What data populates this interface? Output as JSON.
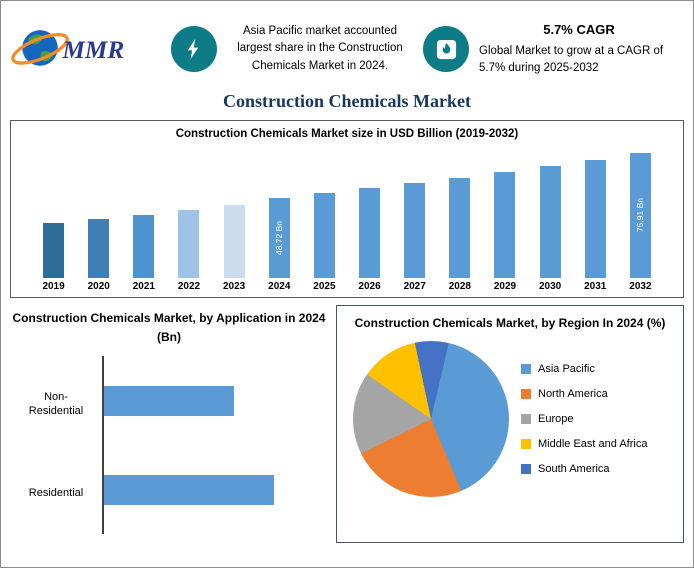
{
  "banner": {
    "logo": {
      "text": "MMR"
    },
    "highlight1": {
      "icon": "lightning-icon",
      "text": "Asia Pacific market accounted largest share in the Construction Chemicals Market in 2024."
    },
    "highlight2": {
      "icon": "flame-icon",
      "heading": "5.7% CAGR",
      "text": "Global Market to grow at a CAGR of 5.7% during 2025-2032"
    }
  },
  "page_title": "Construction Chemicals Market",
  "colors": {
    "accent_teal": "#0E7C86",
    "title_navy": "#17375E",
    "bar_blue": "#5B9BD5"
  },
  "chart_data": [
    {
      "type": "bar",
      "title": "Construction Chemicals Market size in USD Billion (2019-2032)",
      "categories": [
        "2019",
        "2020",
        "2021",
        "2022",
        "2023",
        "2024",
        "2025",
        "2026",
        "2027",
        "2028",
        "2029",
        "2030",
        "2031",
        "2032"
      ],
      "values": [
        33.6,
        35.8,
        38.4,
        41.4,
        44.0,
        48.72,
        51.5,
        54.4,
        57.5,
        60.8,
        64.3,
        67.9,
        71.8,
        75.91
      ],
      "bar_labels": [
        "",
        "",
        "",
        "",
        "",
        "48.72 Bn",
        "",
        "",
        "",
        "",
        "",
        "",
        "",
        "75.91 Bn"
      ],
      "bar_colors": [
        "#2E6E96",
        "#3F7FB6",
        "#4D94CE",
        "#9DC3E6",
        "#C9DCF0",
        "#5B9BD5",
        "#5B9BD5",
        "#5B9BD5",
        "#5B9BD5",
        "#5B9BD5",
        "#5B9BD5",
        "#5B9BD5",
        "#5B9BD5",
        "#5B9BD5"
      ],
      "ylabel": "USD Billion",
      "ylim": [
        0,
        80
      ],
      "grid": false,
      "legend": "none"
    },
    {
      "type": "bar",
      "orientation": "horizontal",
      "title": "Construction Chemicals Market, by Application in 2024 (Bn)",
      "categories": [
        "Non-Residential",
        "Residential"
      ],
      "values": [
        21.0,
        27.7
      ],
      "xlim": [
        0,
        34
      ],
      "bar_color": "#5B9BD5",
      "grid": false,
      "legend": "none"
    },
    {
      "type": "pie",
      "title": "Construction Chemicals Market, by Region In 2024 (%)",
      "slices": [
        {
          "label": "Asia Pacific",
          "value": 40,
          "color": "#5B9BD5"
        },
        {
          "label": "North America",
          "value": 24,
          "color": "#ED7D31"
        },
        {
          "label": "Europe",
          "value": 17,
          "color": "#A5A5A5"
        },
        {
          "label": "Middle East and Africa",
          "value": 12,
          "color": "#FFC000"
        },
        {
          "label": "South America",
          "value": 7,
          "color": "#4472C4"
        }
      ],
      "clockwise_from_top_order": [
        "South America",
        "Asia Pacific",
        "North America",
        "Europe",
        "Middle East and Africa"
      ],
      "start_angle_deg": -12,
      "legend_position": "right"
    }
  ]
}
